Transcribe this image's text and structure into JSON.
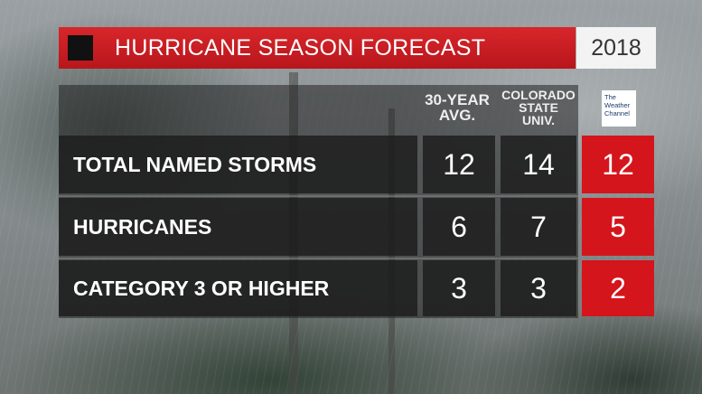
{
  "header": {
    "title": "HURRICANE SEASON FORECAST",
    "year": "2018"
  },
  "columns": {
    "avg": "30-YEAR AVG.",
    "csu_line1": "COLORADO",
    "csu_line2": "STATE",
    "csu_line3": "UNIV.",
    "twc_logo_text": "The Weather Channel"
  },
  "rows": [
    {
      "label": "TOTAL NAMED STORMS",
      "avg": "12",
      "csu": "14",
      "twc": "12"
    },
    {
      "label": "HURRICANES",
      "avg": "6",
      "csu": "7",
      "twc": "5"
    },
    {
      "label": "CATEGORY 3 OR HIGHER",
      "avg": "3",
      "csu": "3",
      "twc": "2"
    }
  ],
  "colors": {
    "accent_red": "#d4151b",
    "header_red": "#c41c22",
    "panel_dark": "#1c1c1c"
  }
}
